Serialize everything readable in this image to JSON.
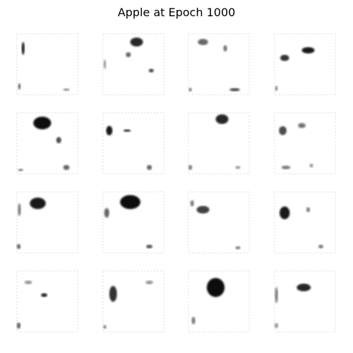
{
  "figure": {
    "title": "Apple at Epoch 1000"
  },
  "grid": {
    "rows": 4,
    "cols": 4,
    "ink_color": "#000000",
    "background_color": "#ffffff"
  },
  "samples": [
    {
      "id": 1,
      "blobs": [
        [
          0.12,
          0.25,
          0.05,
          0.2,
          0.85
        ],
        [
          0.06,
          0.85,
          0.04,
          0.1,
          0.6
        ],
        [
          0.8,
          0.9,
          0.1,
          0.04,
          0.45
        ]
      ]
    },
    {
      "id": 2,
      "blobs": [
        [
          0.55,
          0.15,
          0.2,
          0.14,
          0.85
        ],
        [
          0.42,
          0.35,
          0.08,
          0.08,
          0.6
        ],
        [
          0.78,
          0.6,
          0.08,
          0.06,
          0.7
        ],
        [
          0.05,
          0.5,
          0.04,
          0.15,
          0.4
        ]
      ]
    },
    {
      "id": 3,
      "blobs": [
        [
          0.25,
          0.15,
          0.16,
          0.1,
          0.6
        ],
        [
          0.6,
          0.25,
          0.06,
          0.1,
          0.55
        ],
        [
          0.75,
          0.9,
          0.16,
          0.05,
          0.7
        ],
        [
          0.05,
          0.9,
          0.05,
          0.06,
          0.5
        ]
      ]
    },
    {
      "id": 4,
      "blobs": [
        [
          0.55,
          0.28,
          0.2,
          0.1,
          0.9
        ],
        [
          0.18,
          0.4,
          0.14,
          0.1,
          0.8
        ],
        [
          0.05,
          0.88,
          0.04,
          0.08,
          0.5
        ]
      ]
    },
    {
      "id": 5,
      "blobs": [
        [
          0.42,
          0.18,
          0.28,
          0.2,
          0.95
        ],
        [
          0.68,
          0.45,
          0.08,
          0.1,
          0.7
        ],
        [
          0.8,
          0.88,
          0.1,
          0.08,
          0.6
        ],
        [
          0.08,
          0.92,
          0.08,
          0.04,
          0.5
        ]
      ]
    },
    {
      "id": 6,
      "blobs": [
        [
          0.12,
          0.3,
          0.1,
          0.15,
          0.9
        ],
        [
          0.4,
          0.3,
          0.12,
          0.04,
          0.8
        ],
        [
          0.75,
          0.88,
          0.08,
          0.08,
          0.6
        ]
      ]
    },
    {
      "id": 7,
      "blobs": [
        [
          0.55,
          0.12,
          0.2,
          0.15,
          0.85
        ],
        [
          0.05,
          0.88,
          0.06,
          0.08,
          0.5
        ],
        [
          0.8,
          0.88,
          0.08,
          0.05,
          0.4
        ]
      ]
    },
    {
      "id": 8,
      "blobs": [
        [
          0.15,
          0.3,
          0.12,
          0.14,
          0.7
        ],
        [
          0.45,
          0.22,
          0.12,
          0.08,
          0.55
        ],
        [
          0.2,
          0.88,
          0.14,
          0.06,
          0.5
        ],
        [
          0.6,
          0.85,
          0.06,
          0.06,
          0.4
        ]
      ]
    },
    {
      "id": 9,
      "blobs": [
        [
          0.35,
          0.2,
          0.25,
          0.18,
          0.9
        ],
        [
          0.06,
          0.3,
          0.05,
          0.2,
          0.5
        ],
        [
          0.05,
          0.88,
          0.06,
          0.08,
          0.6
        ]
      ]
    },
    {
      "id": 10,
      "blobs": [
        [
          0.45,
          0.18,
          0.32,
          0.22,
          0.95
        ],
        [
          0.08,
          0.35,
          0.08,
          0.15,
          0.6
        ],
        [
          0.75,
          0.88,
          0.1,
          0.06,
          0.65
        ]
      ]
    },
    {
      "id": 11,
      "blobs": [
        [
          0.25,
          0.3,
          0.2,
          0.12,
          0.75
        ],
        [
          0.08,
          0.2,
          0.06,
          0.1,
          0.5
        ],
        [
          0.8,
          0.9,
          0.08,
          0.05,
          0.5
        ]
      ]
    },
    {
      "id": 12,
      "blobs": [
        [
          0.18,
          0.35,
          0.16,
          0.2,
          0.9
        ],
        [
          0.55,
          0.3,
          0.06,
          0.08,
          0.5
        ],
        [
          0.75,
          0.88,
          0.08,
          0.06,
          0.5
        ]
      ]
    },
    {
      "id": 13,
      "blobs": [
        [
          0.45,
          0.4,
          0.1,
          0.06,
          0.85
        ],
        [
          0.05,
          0.88,
          0.06,
          0.1,
          0.6
        ],
        [
          0.2,
          0.2,
          0.12,
          0.06,
          0.4
        ]
      ]
    },
    {
      "id": 14,
      "blobs": [
        [
          0.18,
          0.38,
          0.12,
          0.25,
          0.8
        ],
        [
          0.05,
          0.9,
          0.05,
          0.06,
          0.5
        ],
        [
          0.75,
          0.2,
          0.12,
          0.06,
          0.4
        ]
      ]
    },
    {
      "id": 15,
      "blobs": [
        [
          0.45,
          0.28,
          0.28,
          0.3,
          0.95
        ],
        [
          0.1,
          0.8,
          0.06,
          0.12,
          0.5
        ]
      ]
    },
    {
      "id": 16,
      "blobs": [
        [
          0.48,
          0.28,
          0.22,
          0.12,
          0.85
        ],
        [
          0.05,
          0.4,
          0.05,
          0.25,
          0.5
        ],
        [
          0.05,
          0.88,
          0.06,
          0.08,
          0.4
        ]
      ]
    }
  ]
}
